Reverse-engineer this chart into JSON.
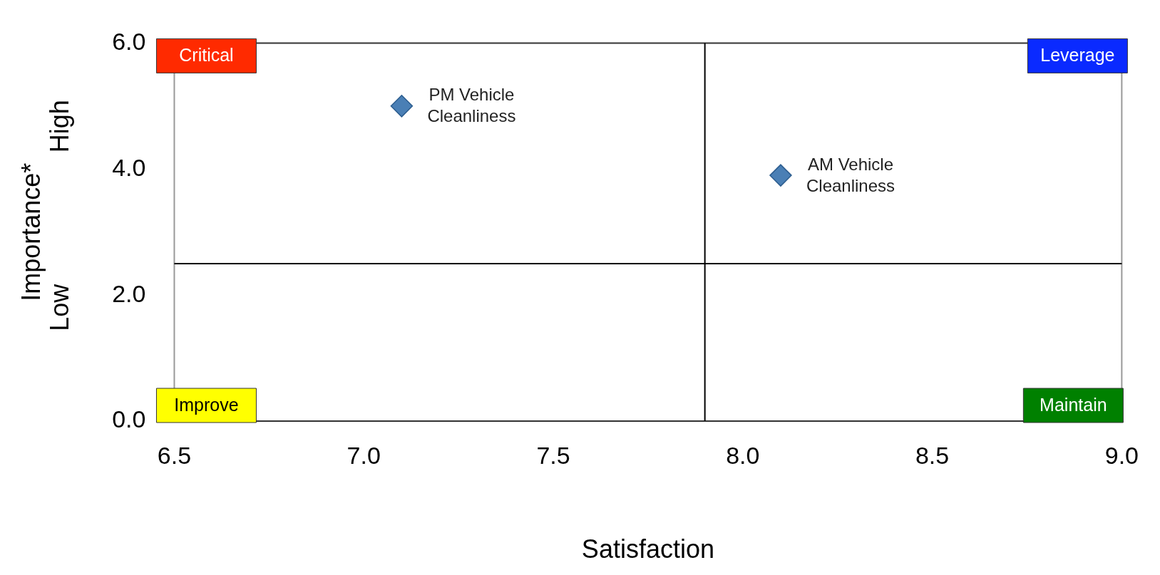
{
  "chart_data": {
    "type": "scatter",
    "xlabel": "Satisfaction",
    "ylabel": "Importance*",
    "annotations": [
      "Critical",
      "Leverage",
      "Improve",
      "Maintain",
      "High",
      "Low"
    ],
    "series": [
      {
        "name": "PM Vehicle Cleanliness",
        "color": "#4a7fb5",
        "x": [
          7.1
        ],
        "values": [
          5.0
        ]
      },
      {
        "name": "AM Vehicle Cleanliness",
        "color": "#4a7fb5",
        "x": [
          8.1
        ],
        "values": [
          3.9
        ]
      }
    ],
    "xlim": [
      6.5,
      9.0
    ],
    "xticks": [
      6.5,
      {
        "value": 7,
        "label": "7.0"
      },
      7.5,
      {
        "value": 8,
        "label": "8.0"
      },
      8.5,
      {
        "value": 9,
        "label": "9.0"
      }
    ],
    "ylim": [
      0,
      6
    ],
    "yticks": [
      {
        "value": 0,
        "label": "0.0"
      },
      {
        "value": 2,
        "label": "2.0"
      },
      {
        "value": 4,
        "label": "4.0"
      },
      {
        "value": 6,
        "label": "6.0"
      }
    ],
    "ref_lines": [
      {
        "axis": "x",
        "value": 7.9,
        "color": "#000000"
      },
      {
        "axis": "y",
        "value": 2.5,
        "color": "#000000"
      }
    ],
    "marker": "diamond",
    "grid": false,
    "legend": false
  }
}
